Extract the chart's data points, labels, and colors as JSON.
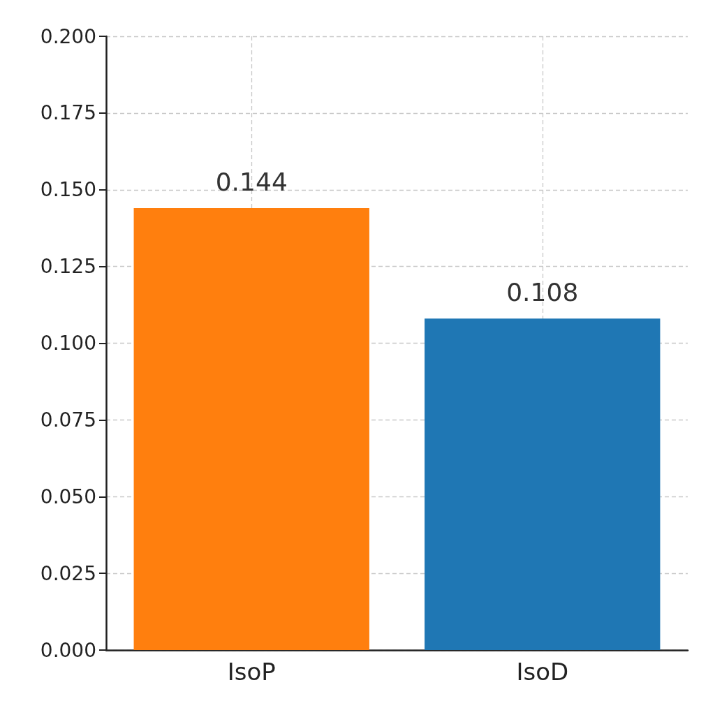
{
  "chart_data": {
    "type": "bar",
    "categories": [
      "IsoP",
      "IsoD"
    ],
    "values": [
      0.144,
      0.108
    ],
    "colors": [
      "#ff7f0e",
      "#1f77b4"
    ],
    "ylim": [
      0,
      0.2
    ],
    "yticks": [
      {
        "value": 0,
        "label": "0.000"
      },
      0.025,
      {
        "value": 0.05,
        "label": "0.050"
      },
      0.075,
      {
        "value": 0.1,
        "label": "0.100"
      },
      0.125,
      {
        "value": 0.15,
        "label": "0.150"
      },
      0.175,
      {
        "value": 0.2,
        "label": "0.200"
      }
    ],
    "data_labels": true,
    "grid": true
  }
}
